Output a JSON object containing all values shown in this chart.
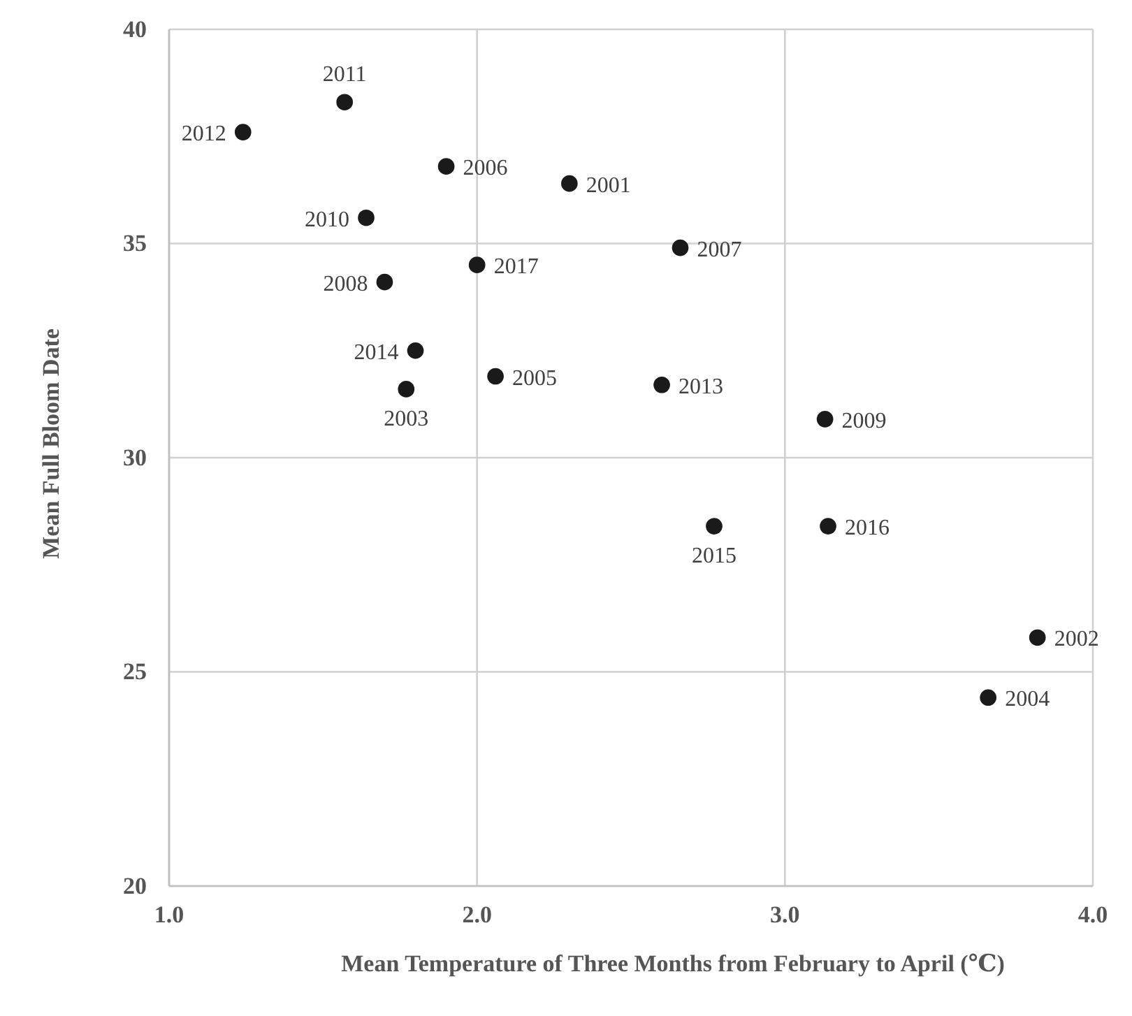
{
  "chart_data": {
    "type": "scatter",
    "xlabel": "Mean Temperature of Three Months from February to April (℃)",
    "ylabel": "Mean Full Bloom Date",
    "x": [
      1.24,
      1.57,
      1.9,
      2.3,
      1.64,
      2.66,
      2.0,
      1.7,
      1.8,
      2.06,
      2.6,
      1.77,
      3.13,
      2.77,
      3.14,
      3.82,
      3.66
    ],
    "series": [
      {
        "color": "#1a1a1a",
        "values": [
          37.6,
          38.3,
          36.8,
          36.4,
          35.6,
          34.9,
          34.5,
          34.1,
          32.5,
          31.9,
          31.7,
          31.6,
          30.9,
          28.4,
          28.4,
          25.8,
          24.4
        ]
      }
    ],
    "annotations": [
      {
        "text": "2012",
        "x": 1.24,
        "y": 37.6
      },
      {
        "text": "2011",
        "x": 1.57,
        "y": 38.3
      },
      {
        "text": "2006",
        "x": 1.9,
        "y": 36.8
      },
      {
        "text": "2001",
        "x": 2.3,
        "y": 36.4
      },
      {
        "text": "2010",
        "x": 1.64,
        "y": 35.6
      },
      {
        "text": "2007",
        "x": 2.66,
        "y": 34.9
      },
      {
        "text": "2017",
        "x": 2.0,
        "y": 34.5
      },
      {
        "text": "2008",
        "x": 1.7,
        "y": 34.1
      },
      {
        "text": "2014",
        "x": 1.8,
        "y": 32.5
      },
      {
        "text": "2005",
        "x": 2.06,
        "y": 31.9
      },
      {
        "text": "2013",
        "x": 2.6,
        "y": 31.7
      },
      {
        "text": "2003",
        "x": 1.77,
        "y": 31.6
      },
      {
        "text": "2009",
        "x": 3.13,
        "y": 30.9
      },
      {
        "text": "2015",
        "x": 2.77,
        "y": 28.4
      },
      {
        "text": "2016",
        "x": 3.14,
        "y": 28.4
      },
      {
        "text": "2002",
        "x": 3.82,
        "y": 25.8
      },
      {
        "text": "2004",
        "x": 3.66,
        "y": 24.4
      }
    ],
    "xlim": [
      1.0,
      4.0
    ],
    "xticks": [
      {
        "value": 1,
        "label": "1.0"
      },
      {
        "value": 2,
        "label": "2.0"
      },
      {
        "value": 3,
        "label": "3.0"
      },
      {
        "value": 4,
        "label": "4.0"
      }
    ],
    "ylim": [
      20,
      40
    ],
    "yticks": [
      20,
      25,
      30,
      35,
      40
    ],
    "grid": true,
    "marker": "circle"
  }
}
